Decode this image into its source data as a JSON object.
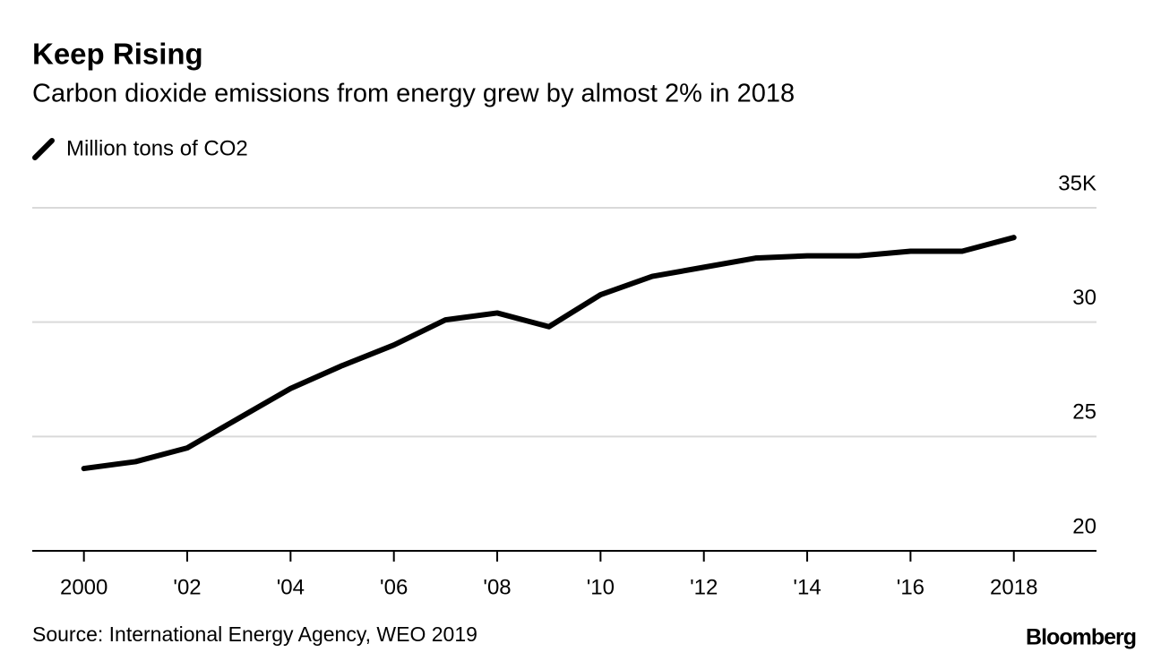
{
  "chart_data": {
    "type": "line",
    "title": "Keep Rising",
    "subtitle": "Carbon dioxide emissions from energy grew by almost 2% in 2018",
    "x": [
      2000,
      2001,
      2002,
      2003,
      2004,
      2005,
      2006,
      2007,
      2008,
      2009,
      2010,
      2011,
      2012,
      2013,
      2014,
      2015,
      2016,
      2017,
      2018
    ],
    "series": [
      {
        "name": "Million tons of CO2",
        "color": "#000000",
        "values": [
          23.6,
          23.9,
          24.5,
          25.8,
          27.1,
          28.1,
          29.0,
          30.1,
          30.4,
          29.8,
          31.2,
          32.0,
          32.4,
          32.8,
          32.9,
          32.9,
          33.1,
          33.1,
          33.7
        ]
      }
    ],
    "xlim": [
      1999,
      2019.6
    ],
    "xticks": [
      2000,
      {
        "value": 2002,
        "label": "'02"
      },
      {
        "value": 2004,
        "label": "'04"
      },
      {
        "value": 2006,
        "label": "'06"
      },
      {
        "value": 2008,
        "label": "'08"
      },
      {
        "value": 2010,
        "label": "'10"
      },
      {
        "value": 2012,
        "label": "'12"
      },
      {
        "value": 2014,
        "label": "'14"
      },
      {
        "value": 2016,
        "label": "'16"
      },
      2018
    ],
    "ylim": [
      20,
      35
    ],
    "yticks": [
      20,
      25,
      30,
      {
        "value": 35,
        "label": "35K"
      }
    ],
    "grid": true,
    "source": "Source: International Energy Agency, WEO 2019",
    "brand": "Bloomberg"
  }
}
